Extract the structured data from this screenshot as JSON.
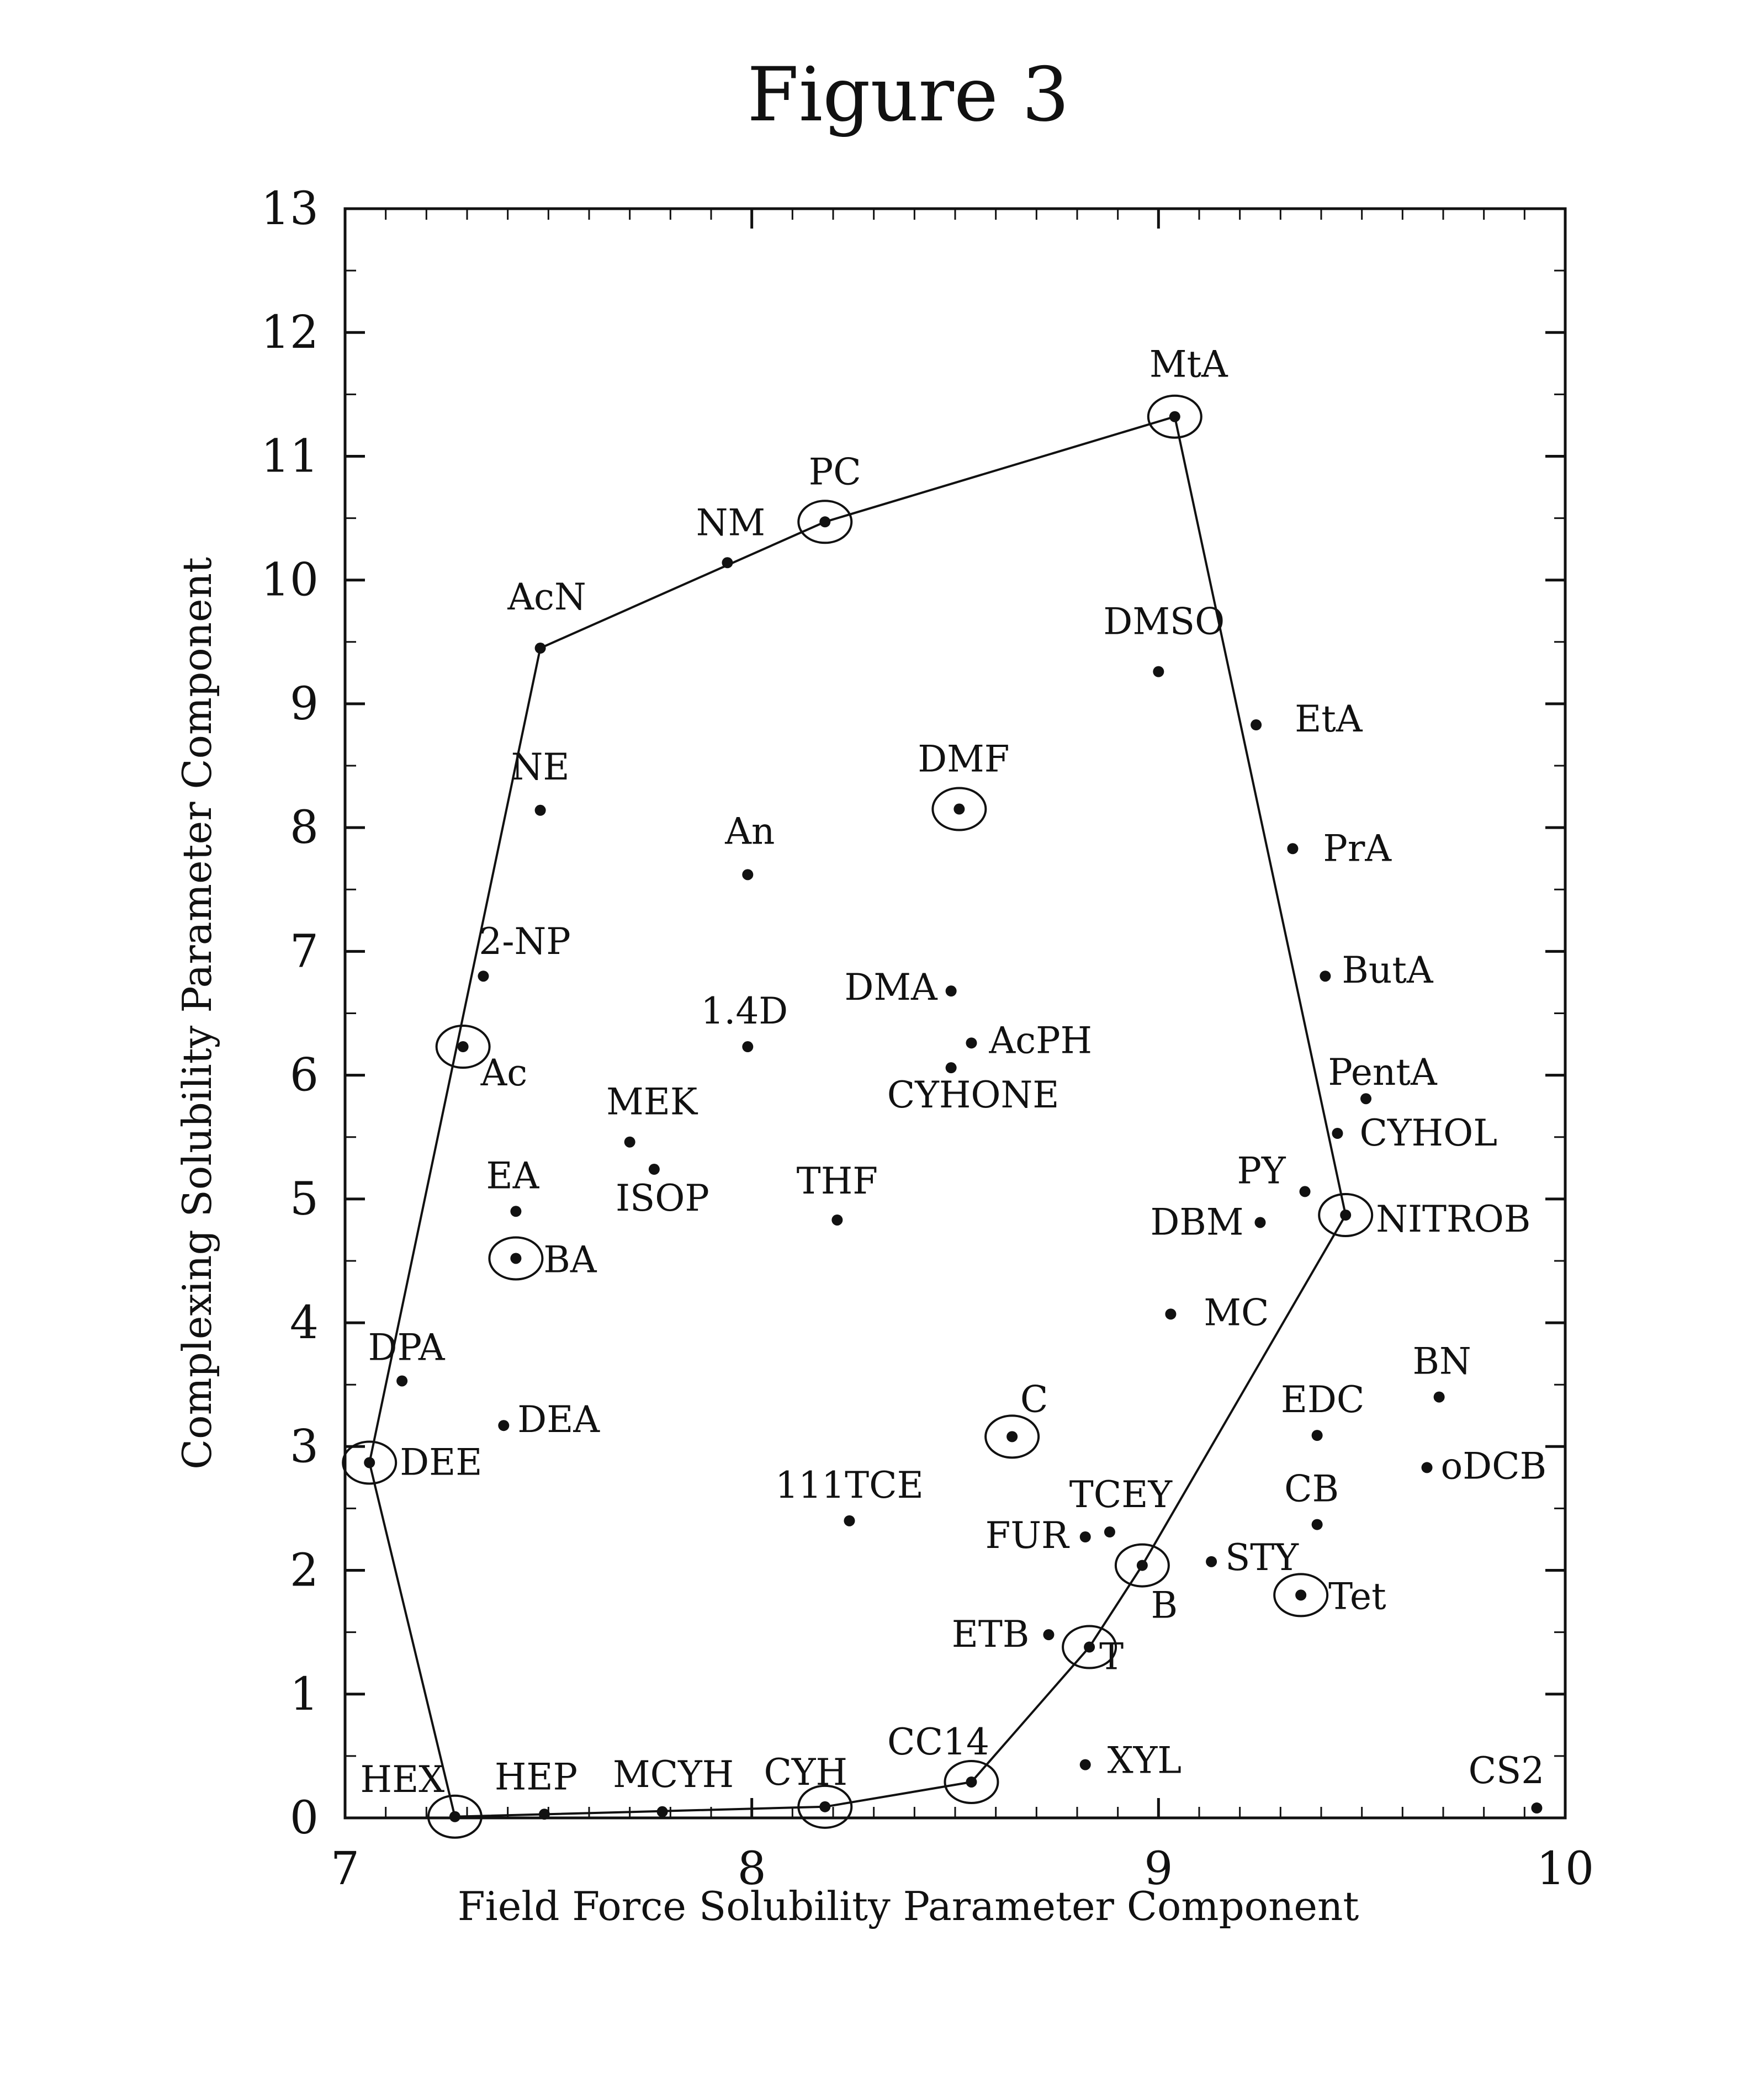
{
  "figure_title": "Figure 3",
  "chart_data": {
    "type": "scatter",
    "title": "Figure 3",
    "xlabel": "Field Force Solubility Parameter Component",
    "ylabel": "Complexing Solubility Parameter Component",
    "xlim": [
      7,
      10
    ],
    "ylim": [
      0,
      13
    ],
    "x_ticks": [
      7,
      8,
      9,
      10
    ],
    "y_ticks": [
      0,
      1,
      2,
      3,
      4,
      5,
      6,
      7,
      8,
      9,
      10,
      11,
      12,
      13
    ],
    "grid": false,
    "legend": "none",
    "point_color": "#111111",
    "points": [
      {
        "label": "MtA",
        "x": 9.04,
        "y": 11.32,
        "circled": true
      },
      {
        "label": "PC",
        "x": 8.18,
        "y": 10.47,
        "circled": true
      },
      {
        "label": "NM",
        "x": 7.94,
        "y": 10.14,
        "circled": false
      },
      {
        "label": "AcN",
        "x": 7.48,
        "y": 9.45,
        "circled": false
      },
      {
        "label": "DMSO",
        "x": 9.0,
        "y": 9.26,
        "circled": false
      },
      {
        "label": "EtA",
        "x": 9.24,
        "y": 8.83,
        "circled": false
      },
      {
        "label": "DMF",
        "x": 8.51,
        "y": 8.15,
        "circled": true
      },
      {
        "label": "NE",
        "x": 7.48,
        "y": 8.14,
        "circled": false
      },
      {
        "label": "PrA",
        "x": 9.33,
        "y": 7.83,
        "circled": false
      },
      {
        "label": "An",
        "x": 7.99,
        "y": 7.62,
        "circled": false
      },
      {
        "label": "2-NP",
        "x": 7.34,
        "y": 6.8,
        "circled": false
      },
      {
        "label": "ButA",
        "x": 9.41,
        "y": 6.8,
        "circled": false
      },
      {
        "label": "DMA",
        "x": 8.49,
        "y": 6.68,
        "circled": false
      },
      {
        "label": "AcPH",
        "x": 8.54,
        "y": 6.26,
        "circled": false
      },
      {
        "label": "Ac",
        "x": 7.29,
        "y": 6.23,
        "circled": true
      },
      {
        "label": "1.4D",
        "x": 7.99,
        "y": 6.23,
        "circled": false
      },
      {
        "label": "CYHONE",
        "x": 8.49,
        "y": 6.06,
        "circled": false
      },
      {
        "label": "PentA",
        "x": 9.51,
        "y": 5.81,
        "circled": false
      },
      {
        "label": "CYHOL",
        "x": 9.44,
        "y": 5.53,
        "circled": false
      },
      {
        "label": "MEK",
        "x": 7.7,
        "y": 5.46,
        "circled": false
      },
      {
        "label": "ISOP",
        "x": 7.76,
        "y": 5.24,
        "circled": false
      },
      {
        "label": "PY",
        "x": 9.36,
        "y": 5.06,
        "circled": false
      },
      {
        "label": "EA",
        "x": 7.42,
        "y": 4.9,
        "circled": false
      },
      {
        "label": "NITROB",
        "x": 9.46,
        "y": 4.87,
        "circled": true
      },
      {
        "label": "THF",
        "x": 8.21,
        "y": 4.83,
        "circled": false
      },
      {
        "label": "DBM",
        "x": 9.25,
        "y": 4.81,
        "circled": false
      },
      {
        "label": "BA",
        "x": 7.42,
        "y": 4.52,
        "circled": true
      },
      {
        "label": "MC",
        "x": 9.03,
        "y": 4.07,
        "circled": false
      },
      {
        "label": "DPA",
        "x": 7.14,
        "y": 3.53,
        "circled": false
      },
      {
        "label": "BN",
        "x": 9.69,
        "y": 3.4,
        "circled": false
      },
      {
        "label": "DEA",
        "x": 7.39,
        "y": 3.17,
        "circled": false
      },
      {
        "label": "EDC",
        "x": 9.39,
        "y": 3.09,
        "circled": false
      },
      {
        "label": "C",
        "x": 8.64,
        "y": 3.08,
        "circled": true
      },
      {
        "label": "DEE",
        "x": 7.06,
        "y": 2.87,
        "circled": true
      },
      {
        "label": "oDCB",
        "x": 9.66,
        "y": 2.83,
        "circled": false
      },
      {
        "label": "111TCE",
        "x": 8.24,
        "y": 2.4,
        "circled": false
      },
      {
        "label": "CB",
        "x": 9.39,
        "y": 2.37,
        "circled": false
      },
      {
        "label": "TCEY",
        "x": 8.88,
        "y": 2.31,
        "circled": false
      },
      {
        "label": "FUR",
        "x": 8.82,
        "y": 2.27,
        "circled": false
      },
      {
        "label": "STY",
        "x": 9.13,
        "y": 2.07,
        "circled": false
      },
      {
        "label": "B",
        "x": 8.96,
        "y": 2.04,
        "circled": true
      },
      {
        "label": "Tet",
        "x": 9.35,
        "y": 1.8,
        "circled": true
      },
      {
        "label": "ETB",
        "x": 8.73,
        "y": 1.48,
        "circled": false
      },
      {
        "label": "T",
        "x": 8.83,
        "y": 1.38,
        "circled": true
      },
      {
        "label": "XYL",
        "x": 8.82,
        "y": 0.43,
        "circled": false
      },
      {
        "label": "CC14",
        "x": 8.54,
        "y": 0.29,
        "circled": true
      },
      {
        "label": "CYH",
        "x": 8.18,
        "y": 0.09,
        "circled": true
      },
      {
        "label": "CS2",
        "x": 9.93,
        "y": 0.08,
        "circled": false
      },
      {
        "label": "MCYH",
        "x": 7.78,
        "y": 0.05,
        "circled": false
      },
      {
        "label": "HEP",
        "x": 7.49,
        "y": 0.03,
        "circled": false
      },
      {
        "label": "HEX",
        "x": 7.27,
        "y": 0.01,
        "circled": true
      }
    ],
    "boundary_polygon": [
      "DEE",
      "AcN",
      "PC",
      "MtA",
      "NITROB",
      "B",
      "T",
      "CC14",
      "CYH",
      "HEX",
      "DEE"
    ]
  }
}
